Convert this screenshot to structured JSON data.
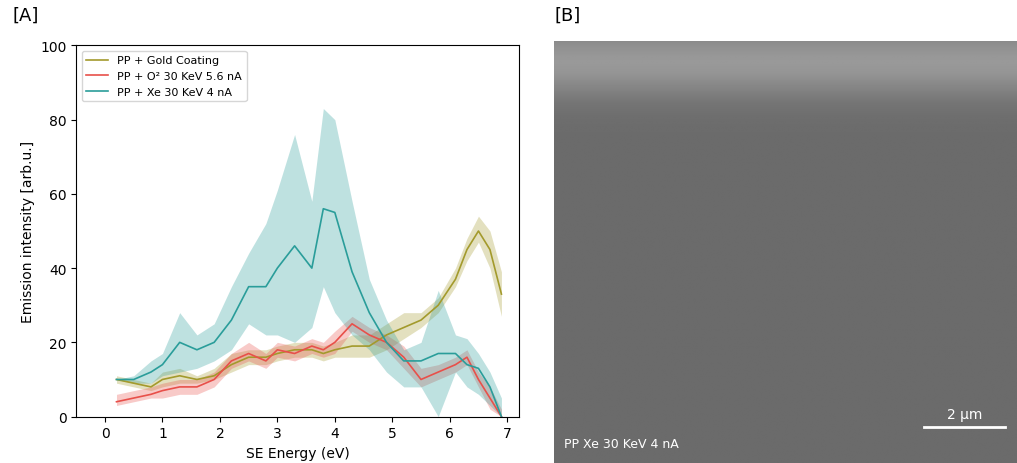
{
  "panel_labels": [
    "[A]",
    "[B]"
  ],
  "chart_data": {
    "type": "line",
    "x_label": "SE Energy (eV)",
    "y_label": "Emission intensity [arb.u.]",
    "x": [
      0.2,
      0.5,
      0.8,
      1.0,
      1.3,
      1.6,
      1.9,
      2.2,
      2.5,
      2.8,
      3.0,
      3.3,
      3.6,
      3.8,
      4.0,
      4.3,
      4.6,
      4.9,
      5.2,
      5.5,
      5.8,
      6.1,
      6.3,
      6.5,
      6.7,
      6.9
    ],
    "xlim": [
      -0.5,
      7.2
    ],
    "xticks": [
      0,
      1,
      2,
      3,
      4,
      5,
      6,
      7
    ],
    "ylim": [
      0,
      100
    ],
    "yticks": [
      0,
      20,
      40,
      60,
      80,
      100
    ],
    "legend": "upper left",
    "series": [
      {
        "name": "PP + Gold Coating",
        "color": "#a39a2c",
        "values": [
          10,
          9,
          8,
          10,
          11,
          10,
          11,
          14,
          16,
          16,
          17,
          18,
          18,
          17,
          18,
          19,
          19,
          22,
          24,
          26,
          30,
          37,
          45,
          50,
          45,
          33
        ],
        "band_low": [
          9,
          8,
          7,
          8,
          9,
          9,
          10,
          12,
          14,
          14,
          15,
          16,
          16,
          15,
          16,
          16,
          16,
          18,
          21,
          24,
          28,
          35,
          42,
          47,
          40,
          27
        ],
        "band_high": [
          11,
          10,
          9,
          12,
          13,
          11,
          13,
          17,
          18,
          18,
          19,
          20,
          20,
          19,
          20,
          22,
          22,
          25,
          28,
          28,
          32,
          40,
          48,
          54,
          50,
          39
        ]
      },
      {
        "name": "PP + O² 30 KeV 5.6 nA",
        "color": "#e8504a",
        "values": [
          4,
          5,
          6,
          7,
          8,
          8,
          10,
          15,
          17,
          15,
          18,
          17,
          19,
          18,
          20,
          25,
          22,
          20,
          16,
          10,
          12,
          14,
          16,
          10,
          5,
          0
        ],
        "band_low": [
          3,
          4,
          5,
          5,
          6,
          6,
          8,
          13,
          15,
          13,
          16,
          15,
          17,
          16,
          17,
          23,
          20,
          18,
          13,
          8,
          10,
          12,
          14,
          8,
          2,
          0
        ],
        "band_high": [
          6,
          7,
          8,
          9,
          10,
          10,
          12,
          17,
          20,
          17,
          20,
          19,
          21,
          20,
          23,
          27,
          24,
          22,
          19,
          13,
          14,
          16,
          18,
          12,
          8,
          2
        ]
      },
      {
        "name": "PP + Xe 30 KeV 4 nA",
        "color": "#2a9d9a",
        "values": [
          10,
          10,
          12,
          14,
          20,
          18,
          20,
          26,
          35,
          35,
          40,
          46,
          40,
          56,
          55,
          39,
          28,
          20,
          15,
          15,
          17,
          17,
          14,
          13,
          8,
          0
        ],
        "band_low": [
          10,
          9,
          9,
          11,
          12,
          13,
          15,
          18,
          25,
          22,
          22,
          20,
          24,
          35,
          28,
          22,
          18,
          12,
          8,
          8,
          0,
          12,
          8,
          6,
          3,
          0
        ],
        "band_high": [
          10,
          11,
          15,
          17,
          28,
          22,
          25,
          35,
          44,
          52,
          61,
          76,
          58,
          83,
          80,
          58,
          37,
          26,
          18,
          20,
          34,
          22,
          21,
          17,
          12,
          5
        ]
      }
    ]
  },
  "image": {
    "caption": "PP Xe 30 KeV 4 nA",
    "scale_bar": "2 µm"
  }
}
